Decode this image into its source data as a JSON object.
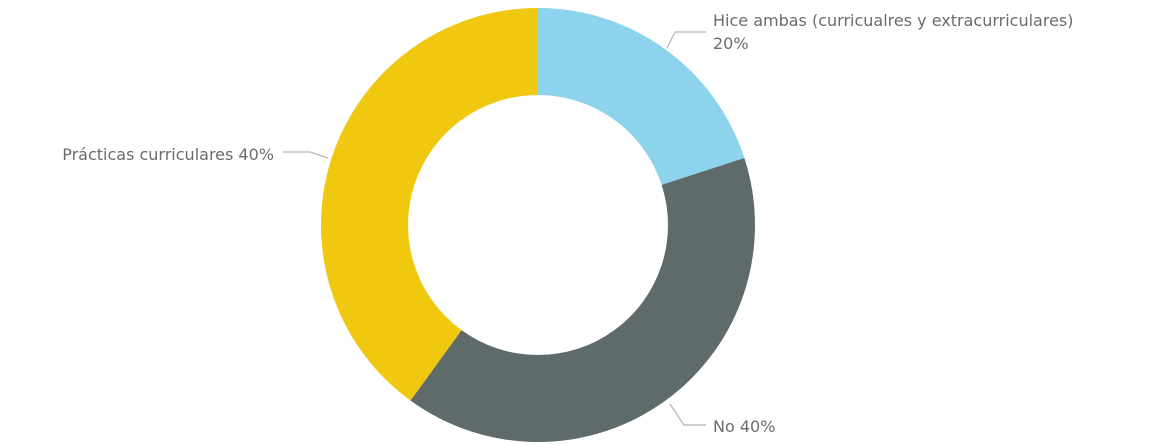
{
  "chart_data": {
    "type": "pie",
    "variant": "donut",
    "title": "",
    "slices": [
      {
        "label": "Hice ambas (curricualres y extracurriculares)",
        "value": 20,
        "value_label": "20%",
        "color": "#8DD3EB"
      },
      {
        "label": "No",
        "value": 40,
        "value_label": "40%",
        "color": "#5F6A6B"
      },
      {
        "label": "Prácticas curriculares",
        "value": 40,
        "value_label": "40%",
        "color": "#F0C810"
      }
    ],
    "start_angle": "12 o'clock",
    "direction": "clockwise",
    "legend": "none"
  }
}
